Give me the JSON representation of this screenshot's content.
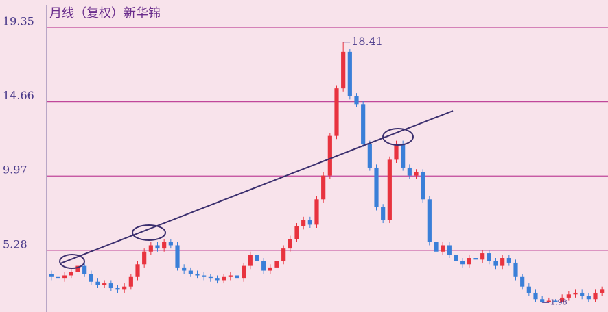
{
  "chart_data": {
    "type": "candlestick",
    "title": "月线（复权）新华锦",
    "open": [
      3.8,
      3.6,
      3.5,
      3.7,
      3.9,
      4.3,
      3.8,
      3.3,
      3.1,
      3.2,
      2.9,
      2.8,
      3.0,
      3.6,
      4.4,
      5.2,
      5.6,
      5.4,
      5.8,
      5.6,
      4.2,
      4.0,
      3.8,
      3.7,
      3.6,
      3.5,
      3.4,
      3.6,
      3.7,
      3.5,
      4.3,
      5.0,
      4.6,
      4.0,
      4.2,
      4.6,
      5.4,
      6.0,
      6.8,
      7.2,
      6.9,
      8.5,
      10.0,
      12.5,
      15.5,
      17.8,
      15.0,
      14.5,
      12.0,
      10.5,
      8.0,
      7.2,
      11.0,
      12.0,
      10.5,
      10.0,
      10.2,
      8.5,
      5.8,
      5.2,
      5.6,
      5.0,
      4.6,
      4.4,
      4.8,
      4.7,
      5.1,
      4.6,
      4.3,
      4.8,
      4.5,
      3.6,
      3.0,
      2.6,
      2.2,
      2.0,
      2.1,
      2.0,
      2.3,
      2.5,
      2.6,
      2.4,
      2.2,
      2.6
    ],
    "high": [
      4.0,
      3.8,
      3.9,
      4.1,
      4.5,
      4.5,
      4.0,
      3.5,
      3.4,
      3.4,
      3.1,
      3.2,
      3.8,
      4.6,
      5.4,
      5.8,
      5.8,
      6.0,
      6.0,
      5.8,
      4.4,
      4.2,
      4.0,
      3.9,
      3.8,
      3.7,
      3.8,
      3.9,
      3.9,
      4.5,
      5.2,
      5.2,
      4.8,
      4.4,
      4.8,
      5.6,
      6.2,
      7.0,
      7.4,
      7.4,
      8.7,
      10.2,
      12.7,
      15.7,
      18.41,
      18.0,
      15.2,
      14.7,
      12.2,
      10.7,
      8.2,
      11.2,
      12.2,
      12.2,
      10.7,
      10.4,
      10.4,
      8.7,
      6.0,
      5.8,
      5.8,
      5.2,
      4.8,
      5.0,
      5.0,
      5.3,
      5.3,
      4.8,
      5.0,
      5.0,
      4.7,
      3.8,
      3.2,
      2.8,
      2.4,
      2.3,
      2.2,
      2.5,
      2.7,
      2.8,
      2.8,
      2.6,
      2.8,
      3.0
    ],
    "low": [
      3.4,
      3.3,
      3.3,
      3.5,
      3.7,
      3.6,
      3.1,
      2.9,
      2.9,
      2.7,
      2.6,
      2.6,
      2.8,
      3.4,
      4.2,
      5.0,
      5.2,
      5.2,
      5.4,
      4.0,
      3.8,
      3.6,
      3.5,
      3.4,
      3.3,
      3.2,
      3.2,
      3.4,
      3.3,
      3.3,
      4.1,
      4.4,
      3.8,
      3.8,
      4.0,
      4.4,
      5.2,
      5.8,
      6.6,
      6.7,
      6.7,
      8.3,
      9.8,
      12.3,
      15.3,
      14.8,
      14.3,
      11.8,
      10.3,
      7.8,
      7.0,
      7.0,
      10.8,
      10.3,
      9.8,
      9.8,
      8.3,
      5.6,
      5.0,
      5.0,
      4.8,
      4.4,
      4.2,
      4.2,
      4.5,
      4.5,
      4.4,
      4.1,
      4.1,
      4.3,
      3.4,
      2.8,
      2.4,
      2.0,
      1.98,
      2.0,
      2.0,
      2.0,
      2.1,
      2.3,
      2.2,
      2.0,
      2.0,
      2.4
    ],
    "close": [
      3.6,
      3.5,
      3.7,
      3.9,
      4.3,
      3.8,
      3.3,
      3.1,
      3.2,
      2.9,
      2.8,
      3.0,
      3.6,
      4.4,
      5.2,
      5.6,
      5.4,
      5.8,
      5.6,
      4.2,
      4.0,
      3.8,
      3.7,
      3.6,
      3.5,
      3.4,
      3.6,
      3.7,
      3.5,
      4.3,
      5.0,
      4.6,
      4.0,
      4.2,
      4.6,
      5.4,
      6.0,
      6.8,
      7.2,
      6.9,
      8.5,
      10.0,
      12.5,
      15.5,
      17.8,
      15.0,
      14.5,
      12.0,
      10.5,
      8.0,
      7.2,
      11.0,
      12.0,
      10.5,
      10.0,
      10.2,
      8.5,
      5.8,
      5.2,
      5.6,
      5.0,
      4.6,
      4.4,
      4.8,
      4.7,
      5.1,
      4.6,
      4.3,
      4.8,
      4.5,
      3.6,
      3.0,
      2.6,
      2.2,
      2.0,
      2.1,
      2.0,
      2.3,
      2.5,
      2.6,
      2.4,
      2.2,
      2.6,
      2.8
    ],
    "up_color": "#e8333f",
    "down_color": "#3a7fd8",
    "grid_color": "#c0479a",
    "ylim": [
      1.39,
      20.73
    ],
    "yticks": [
      5.28,
      9.97,
      14.66,
      19.35
    ],
    "grid": true
  }
}
